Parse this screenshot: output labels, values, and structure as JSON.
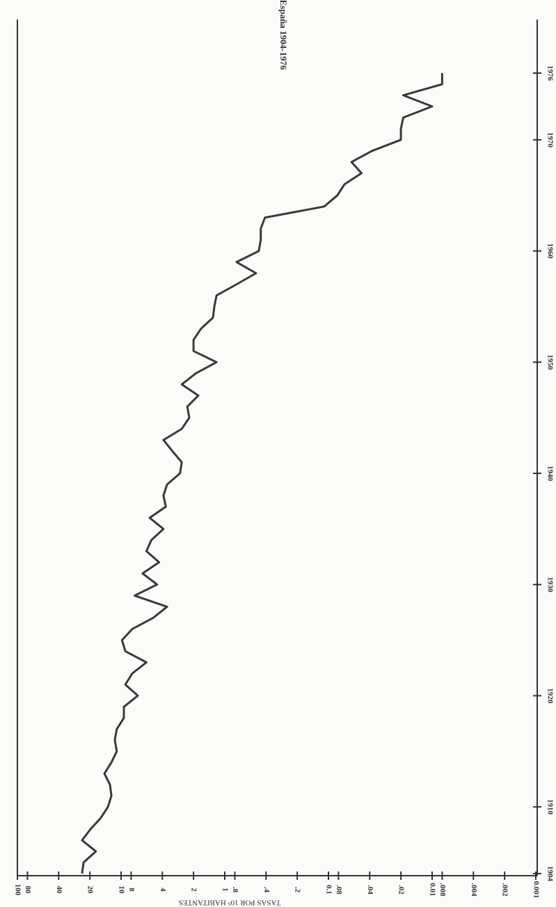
{
  "chart_data": {
    "type": "line",
    "title": "España 1904-1976",
    "y_label": "TASAS POR 10⁵ HABITANTES",
    "x": [
      1904,
      1905,
      1906,
      1907,
      1908,
      1909,
      1910,
      1911,
      1912,
      1913,
      1914,
      1915,
      1916,
      1917,
      1918,
      1919,
      1920,
      1921,
      1922,
      1923,
      1924,
      1925,
      1926,
      1927,
      1928,
      1929,
      1930,
      1931,
      1932,
      1933,
      1934,
      1935,
      1936,
      1937,
      1938,
      1939,
      1940,
      1941,
      1942,
      1943,
      1944,
      1945,
      1946,
      1947,
      1948,
      1949,
      1950,
      1951,
      1952,
      1953,
      1954,
      1955,
      1956,
      1957,
      1958,
      1959,
      1960,
      1961,
      1962,
      1963,
      1964,
      1965,
      1966,
      1967,
      1968,
      1969,
      1970,
      1971,
      1972,
      1973,
      1974,
      1975,
      1976
    ],
    "values": [
      23.8,
      23,
      17.5,
      23.8,
      19.7,
      15.7,
      13.4,
      12.4,
      12.8,
      14.5,
      12.4,
      11,
      11.5,
      11,
      9.4,
      9.4,
      6.9,
      9.1,
      7.8,
      5.7,
      9.1,
      9.8,
      7.8,
      4.9,
      3.6,
      7.4,
      4.5,
      6.2,
      4.3,
      5.7,
      5.1,
      3.9,
      5.3,
      3.7,
      3.9,
      3.6,
      2.7,
      2.6,
      3.2,
      3.9,
      2.6,
      2.2,
      2.3,
      1.8,
      2.6,
      1.9,
      1.2,
      2.0,
      2.0,
      1.7,
      1.3,
      1.26,
      1.2,
      0.77,
      0.5,
      0.77,
      0.47,
      0.45,
      0.45,
      0.41,
      0.11,
      0.082,
      0.07,
      0.048,
      0.06,
      0.038,
      0.02,
      0.02,
      0.019,
      0.01,
      0.019,
      0.008,
      0.008
    ],
    "color": "#3a3a3a",
    "xlim": [
      1904,
      1976
    ],
    "xticks": [
      1904,
      1910,
      1920,
      1930,
      1940,
      1950,
      1960,
      1970,
      1976
    ],
    "ylim": [
      0.001,
      100
    ],
    "ylog": true,
    "yticks": [
      100,
      80,
      40,
      20,
      10,
      8,
      4,
      2,
      1,
      {
        "value": 0.8,
        "label": ".8"
      },
      {
        "value": 0.4,
        "label": ".4"
      },
      {
        "value": 0.2,
        "label": ".2"
      },
      0.1,
      {
        "value": 0.08,
        "label": ".08"
      },
      {
        "value": 0.04,
        "label": ".04"
      },
      {
        "value": 0.02,
        "label": ".02"
      },
      0.01,
      {
        "value": 0.008,
        "label": ".008"
      },
      {
        "value": 0.004,
        "label": ".004"
      },
      {
        "value": 0.002,
        "label": ".002"
      },
      0.001
    ]
  }
}
